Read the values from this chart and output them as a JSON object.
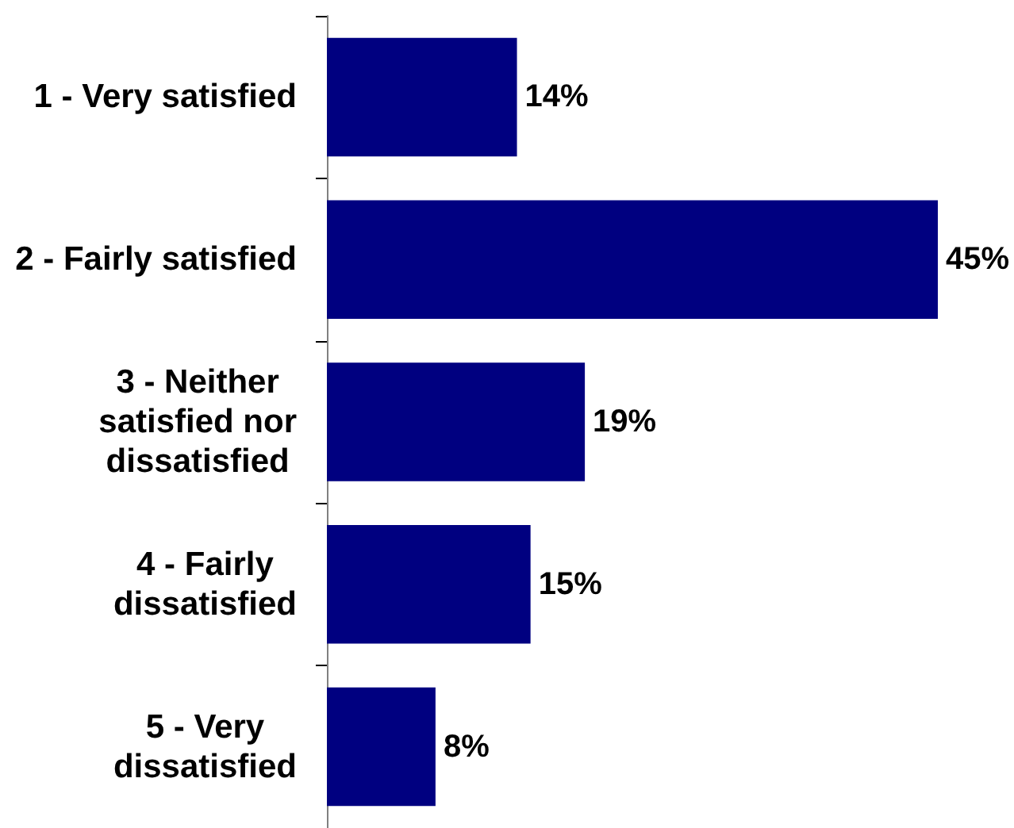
{
  "chart_data": {
    "type": "bar",
    "orientation": "horizontal",
    "categories": [
      "1 - Very satisfied",
      "2 - Fairly satisfied",
      "3 - Neither satisfied nor dissatisfied",
      "4 - Fairly dissatisfied",
      "5 - Very dissatisfied"
    ],
    "values": [
      14,
      45,
      19,
      15,
      8
    ],
    "value_labels": [
      "14%",
      "45%",
      "19%",
      "15%",
      "8%"
    ],
    "color": "#000080"
  }
}
